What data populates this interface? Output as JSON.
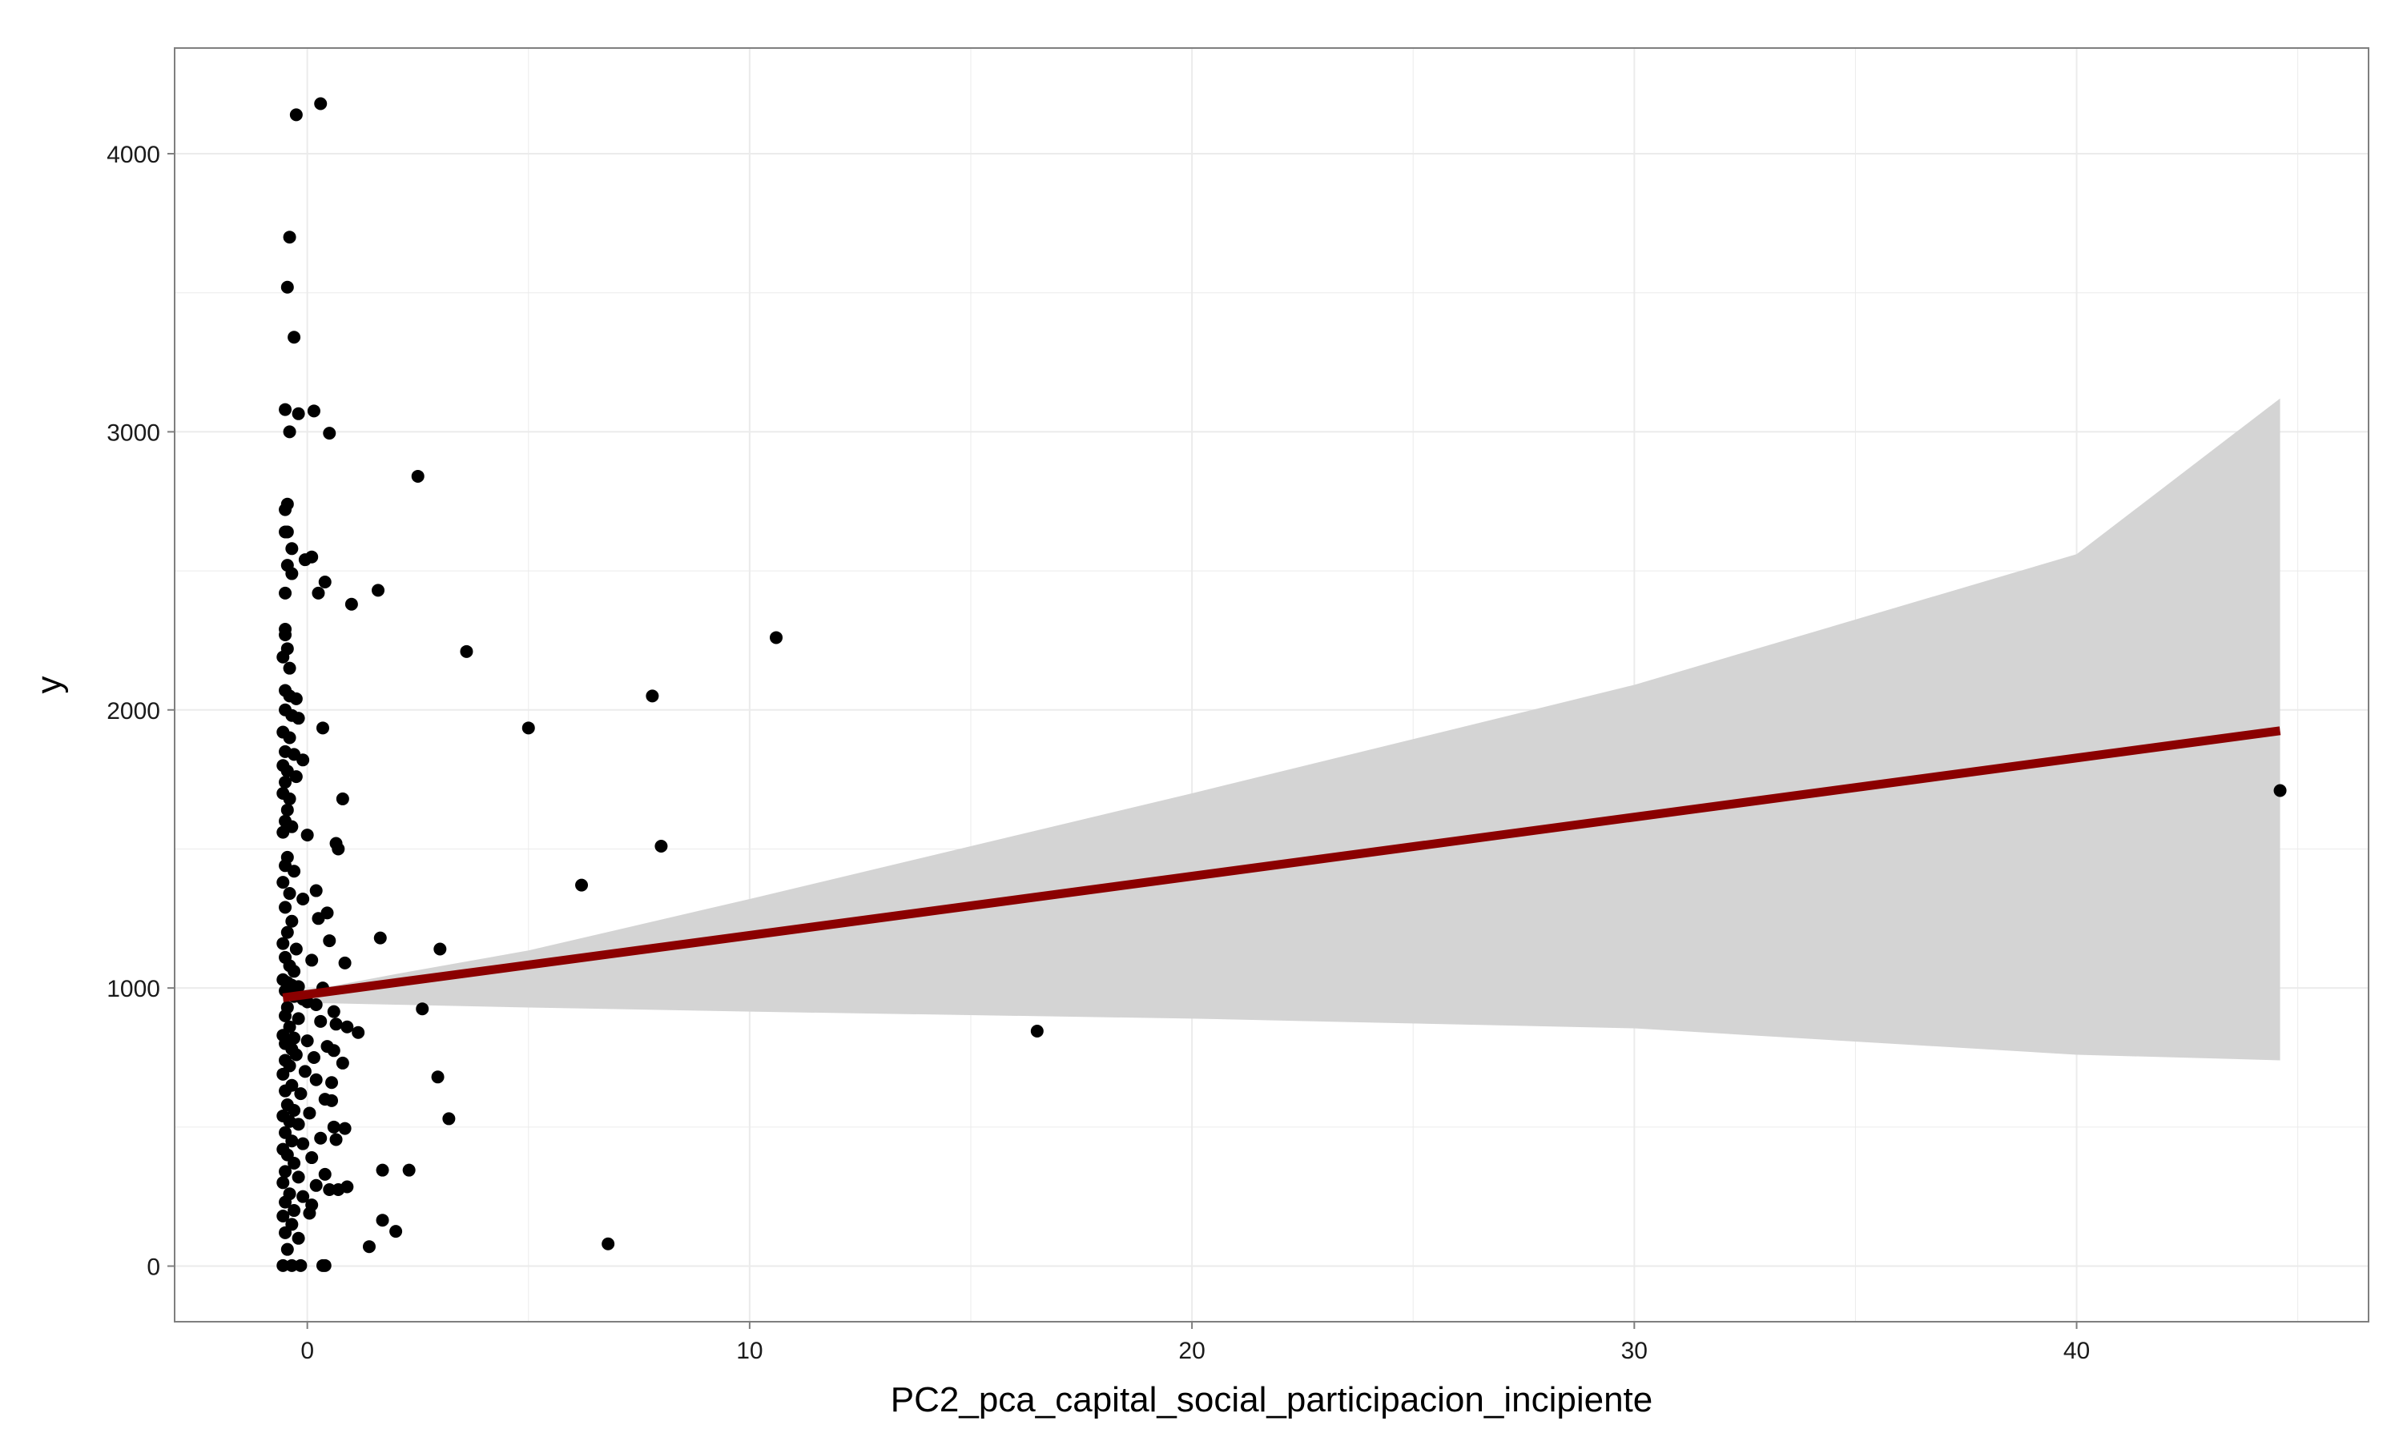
{
  "chart_data": {
    "type": "scatter",
    "title": "",
    "xlabel": "PC2_pca_capital_social_participacion_incipiente",
    "ylabel": "y",
    "xlim": [
      -3.0,
      46.6
    ],
    "ylim": [
      -200,
      4380
    ],
    "x_ticks": [
      0,
      10,
      20,
      30,
      40
    ],
    "x_tick_labels": [
      "0",
      "10",
      "20",
      "30",
      "40"
    ],
    "x_minor_ticks": [
      5,
      15,
      25,
      35,
      45
    ],
    "y_ticks": [
      0,
      1000,
      2000,
      3000,
      4000
    ],
    "y_tick_labels": [
      "0",
      "1000",
      "2000",
      "3000",
      "4000"
    ],
    "y_minor_ticks": [
      500,
      1500,
      2500,
      3500
    ],
    "grid": true,
    "colors": {
      "points": "#000000",
      "fit_line": "#8b0000",
      "confidence_band": "#d4d4d4",
      "grid": "#ebebeb",
      "panel_border": "#7f7f7f"
    },
    "points": [
      [
        0.3,
        4180
      ],
      [
        -0.25,
        4140
      ],
      [
        -0.4,
        3700
      ],
      [
        -0.45,
        3520
      ],
      [
        -0.3,
        3340
      ],
      [
        -0.5,
        3080
      ],
      [
        0.15,
        3075
      ],
      [
        -0.2,
        3065
      ],
      [
        -0.4,
        3000
      ],
      [
        0.5,
        2995
      ],
      [
        2.5,
        2840
      ],
      [
        -0.45,
        2740
      ],
      [
        -0.5,
        2720
      ],
      [
        -0.5,
        2640
      ],
      [
        -0.45,
        2640
      ],
      [
        -0.35,
        2580
      ],
      [
        0.1,
        2550
      ],
      [
        -0.05,
        2540
      ],
      [
        -0.45,
        2520
      ],
      [
        -0.35,
        2490
      ],
      [
        0.4,
        2460
      ],
      [
        1.6,
        2430
      ],
      [
        -0.5,
        2420
      ],
      [
        0.25,
        2420
      ],
      [
        1.0,
        2380
      ],
      [
        -0.5,
        2290
      ],
      [
        -0.5,
        2270
      ],
      [
        -0.45,
        2220
      ],
      [
        -0.55,
        2190
      ],
      [
        3.6,
        2210
      ],
      [
        10.6,
        2260
      ],
      [
        -0.4,
        2150
      ],
      [
        -0.5,
        2070
      ],
      [
        -0.4,
        2050
      ],
      [
        -0.25,
        2040
      ],
      [
        7.8,
        2050
      ],
      [
        -0.5,
        2000
      ],
      [
        -0.35,
        1980
      ],
      [
        -0.2,
        1970
      ],
      [
        0.35,
        1935
      ],
      [
        5.0,
        1935
      ],
      [
        -0.55,
        1920
      ],
      [
        -0.4,
        1900
      ],
      [
        -0.5,
        1850
      ],
      [
        -0.3,
        1840
      ],
      [
        -0.1,
        1820
      ],
      [
        -0.55,
        1800
      ],
      [
        -0.45,
        1780
      ],
      [
        -0.25,
        1760
      ],
      [
        0.8,
        1680
      ],
      [
        -0.5,
        1740
      ],
      [
        -0.55,
        1700
      ],
      [
        -0.4,
        1680
      ],
      [
        -0.45,
        1640
      ],
      [
        -0.5,
        1600
      ],
      [
        -0.35,
        1580
      ],
      [
        -0.55,
        1560
      ],
      [
        0.0,
        1550
      ],
      [
        0.65,
        1520
      ],
      [
        0.7,
        1500
      ],
      [
        8.0,
        1510
      ],
      [
        44.6,
        1710
      ],
      [
        -0.45,
        1470
      ],
      [
        -0.5,
        1440
      ],
      [
        -0.3,
        1420
      ],
      [
        6.2,
        1370
      ],
      [
        0.2,
        1350
      ],
      [
        -0.55,
        1380
      ],
      [
        -0.4,
        1340
      ],
      [
        -0.1,
        1320
      ],
      [
        -0.5,
        1290
      ],
      [
        0.45,
        1270
      ],
      [
        0.25,
        1250
      ],
      [
        -0.35,
        1240
      ],
      [
        -0.45,
        1200
      ],
      [
        1.65,
        1180
      ],
      [
        0.5,
        1170
      ],
      [
        -0.55,
        1160
      ],
      [
        -0.25,
        1140
      ],
      [
        3.0,
        1140
      ],
      [
        -0.5,
        1110
      ],
      [
        0.1,
        1100
      ],
      [
        0.85,
        1090
      ],
      [
        -0.4,
        1080
      ],
      [
        -0.3,
        1060
      ],
      [
        -0.55,
        1030
      ],
      [
        -0.45,
        1020
      ],
      [
        -0.35,
        1010
      ],
      [
        -0.2,
        1005
      ],
      [
        0.35,
        1000
      ],
      [
        -0.5,
        990
      ],
      [
        -0.3,
        970
      ],
      [
        -0.1,
        960
      ],
      [
        0.0,
        950
      ],
      [
        0.2,
        940
      ],
      [
        -0.45,
        930
      ],
      [
        2.6,
        925
      ],
      [
        0.6,
        915
      ],
      [
        -0.5,
        900
      ],
      [
        -0.2,
        890
      ],
      [
        0.3,
        880
      ],
      [
        0.65,
        870
      ],
      [
        -0.4,
        860
      ],
      [
        0.9,
        860
      ],
      [
        1.15,
        840
      ],
      [
        16.5,
        845
      ],
      [
        -0.55,
        830
      ],
      [
        -0.3,
        820
      ],
      [
        0.0,
        810
      ],
      [
        -0.5,
        800
      ],
      [
        0.45,
        790
      ],
      [
        -0.35,
        780
      ],
      [
        0.6,
        775
      ],
      [
        -0.25,
        760
      ],
      [
        0.15,
        750
      ],
      [
        -0.5,
        740
      ],
      [
        0.8,
        730
      ],
      [
        -0.4,
        720
      ],
      [
        -0.05,
        700
      ],
      [
        -0.55,
        690
      ],
      [
        2.95,
        680
      ],
      [
        0.2,
        670
      ],
      [
        0.55,
        660
      ],
      [
        -0.35,
        650
      ],
      [
        -0.5,
        630
      ],
      [
        -0.15,
        620
      ],
      [
        0.4,
        600
      ],
      [
        0.55,
        595
      ],
      [
        -0.45,
        580
      ],
      [
        -0.3,
        560
      ],
      [
        0.05,
        550
      ],
      [
        -0.55,
        540
      ],
      [
        3.2,
        530
      ],
      [
        -0.4,
        520
      ],
      [
        -0.2,
        510
      ],
      [
        0.6,
        500
      ],
      [
        0.85,
        495
      ],
      [
        -0.5,
        480
      ],
      [
        0.3,
        460
      ],
      [
        0.65,
        455
      ],
      [
        -0.35,
        450
      ],
      [
        -0.1,
        440
      ],
      [
        -0.55,
        420
      ],
      [
        -0.45,
        400
      ],
      [
        0.1,
        390
      ],
      [
        -0.3,
        370
      ],
      [
        1.7,
        345
      ],
      [
        2.3,
        345
      ],
      [
        -0.5,
        340
      ],
      [
        0.4,
        330
      ],
      [
        -0.2,
        320
      ],
      [
        -0.55,
        300
      ],
      [
        0.2,
        290
      ],
      [
        0.9,
        285
      ],
      [
        0.5,
        275
      ],
      [
        0.7,
        275
      ],
      [
        -0.4,
        260
      ],
      [
        -0.1,
        250
      ],
      [
        -0.5,
        230
      ],
      [
        0.1,
        220
      ],
      [
        -0.3,
        200
      ],
      [
        0.05,
        190
      ],
      [
        -0.55,
        180
      ],
      [
        1.7,
        165
      ],
      [
        -0.35,
        150
      ],
      [
        2.0,
        125
      ],
      [
        -0.5,
        120
      ],
      [
        -0.2,
        100
      ],
      [
        1.4,
        70
      ],
      [
        -0.45,
        60
      ],
      [
        6.8,
        80
      ],
      [
        -0.55,
        2
      ],
      [
        -0.35,
        2
      ],
      [
        -0.15,
        2
      ],
      [
        0.35,
        2
      ],
      [
        0.4,
        2
      ]
    ],
    "fit_line": {
      "x": [
        -0.55,
        44.6
      ],
      "y": [
        965,
        1925
      ]
    },
    "confidence_band": {
      "x": [
        -0.55,
        0.5,
        2,
        5,
        10,
        20,
        30,
        40,
        44.6
      ],
      "lower": [
        945,
        945,
        940,
        930,
        915,
        890,
        855,
        760,
        740
      ],
      "upper": [
        985,
        1005,
        1050,
        1135,
        1320,
        1700,
        2090,
        2560,
        3120
      ]
    }
  }
}
